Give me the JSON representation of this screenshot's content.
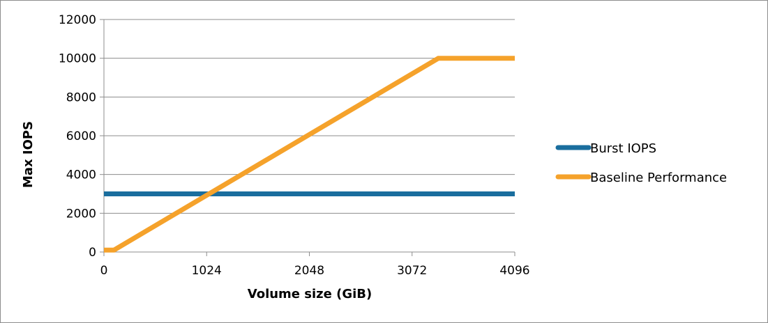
{
  "chart_data": {
    "type": "line",
    "xlabel": "Volume size (GiB)",
    "ylabel": "Max IOPS",
    "xlim": [
      0,
      4096
    ],
    "ylim": [
      0,
      12000
    ],
    "x_ticks": [
      0,
      1024,
      2048,
      3072,
      4096
    ],
    "y_ticks": [
      0,
      2000,
      4000,
      6000,
      8000,
      10000,
      12000
    ],
    "grid": "horizontal",
    "legend_position": "right",
    "series": [
      {
        "name": "Burst IOPS",
        "color": "#1a6e9e",
        "points": [
          [
            0,
            3000
          ],
          [
            4096,
            3000
          ]
        ]
      },
      {
        "name": "Baseline Performance",
        "color": "#f5a22b",
        "points": [
          [
            0,
            100
          ],
          [
            100,
            100
          ],
          [
            3334,
            10000
          ],
          [
            4096,
            10000
          ]
        ]
      }
    ]
  }
}
